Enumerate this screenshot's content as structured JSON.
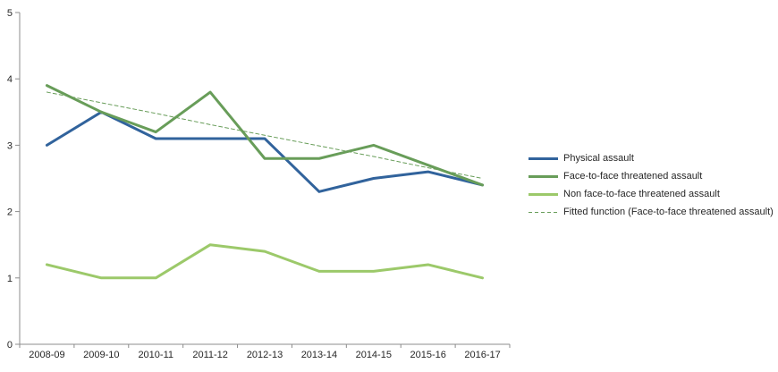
{
  "chart_data": {
    "type": "line",
    "title": "",
    "xlabel": "",
    "ylabel": "",
    "categories": [
      "2008-09",
      "2009-10",
      "2010-11",
      "2011-12",
      "2012-13",
      "2013-14",
      "2014-15",
      "2015-16",
      "2016-17"
    ],
    "series": [
      {
        "name": "Physical assault",
        "color": "#31639C",
        "dash": false,
        "width": 3,
        "values": [
          3.0,
          3.5,
          3.1,
          3.1,
          3.1,
          2.3,
          2.5,
          2.6,
          2.4
        ]
      },
      {
        "name": "Face-to-face threatened assault",
        "color": "#689D59",
        "dash": false,
        "width": 3,
        "values": [
          3.9,
          3.5,
          3.2,
          3.8,
          2.8,
          2.8,
          3.0,
          2.7,
          2.4
        ]
      },
      {
        "name": "Non face-to-face threatened assault",
        "color": "#9CC96A",
        "dash": false,
        "width": 3,
        "values": [
          1.2,
          1.0,
          1.0,
          1.5,
          1.4,
          1.1,
          1.1,
          1.2,
          1.0
        ]
      },
      {
        "name": "Fitted function (Face-to-face threatened assault)",
        "color": "#689D59",
        "dash": true,
        "width": 1,
        "values": [
          3.8,
          3.64,
          3.48,
          3.31,
          3.15,
          2.99,
          2.83,
          2.66,
          2.5
        ]
      }
    ],
    "ylim": [
      0,
      5
    ],
    "yticks": [
      0,
      1,
      2,
      3,
      4,
      5
    ],
    "grid": false,
    "legend_position": "right",
    "axis_color": "#8C8C8C",
    "text_color": "#262626",
    "background_color": "#FFFFFF"
  }
}
